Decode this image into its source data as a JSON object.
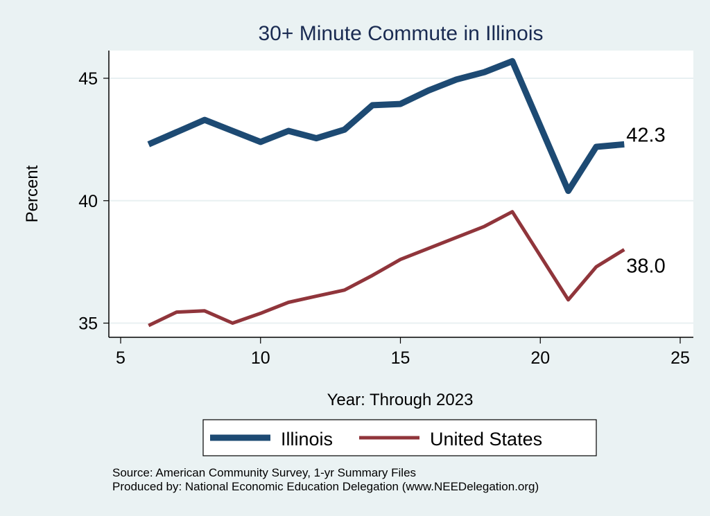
{
  "chart_data": {
    "type": "line",
    "title": "30+ Minute Commute in Illinois",
    "xlabel": "Year: Through 2023",
    "ylabel": "Percent",
    "xlim": [
      5,
      25
    ],
    "ylim": [
      35,
      45
    ],
    "xticks": [
      5,
      10,
      15,
      20,
      25
    ],
    "yticks": [
      35,
      40,
      45
    ],
    "grid": "horizontal",
    "legend_position": "bottom",
    "series": [
      {
        "name": "Illinois",
        "color": "#1d4a73",
        "x": [
          6,
          7,
          8,
          9,
          10,
          11,
          12,
          13,
          14,
          15,
          16,
          17,
          18,
          19,
          21,
          22,
          23
        ],
        "values": [
          42.3,
          42.8,
          43.3,
          42.85,
          42.4,
          42.85,
          42.55,
          42.9,
          43.9,
          43.95,
          44.5,
          44.95,
          45.25,
          45.7,
          40.4,
          42.2,
          42.3
        ],
        "end_label": "42.3"
      },
      {
        "name": "United States",
        "color": "#90353b",
        "x": [
          6,
          7,
          8,
          9,
          10,
          11,
          12,
          13,
          14,
          15,
          16,
          17,
          18,
          19,
          21,
          22,
          23
        ],
        "values": [
          34.9,
          35.45,
          35.5,
          35.0,
          35.4,
          35.85,
          36.1,
          36.35,
          36.95,
          37.6,
          38.05,
          38.5,
          38.95,
          39.55,
          35.95,
          37.3,
          38.0
        ],
        "end_label": "38.0"
      }
    ],
    "notes": [
      "Source: American Community Survey, 1-yr Summary Files",
      "Produced by: National Economic Education Delegation (www.NEEDelegation.org)"
    ]
  }
}
